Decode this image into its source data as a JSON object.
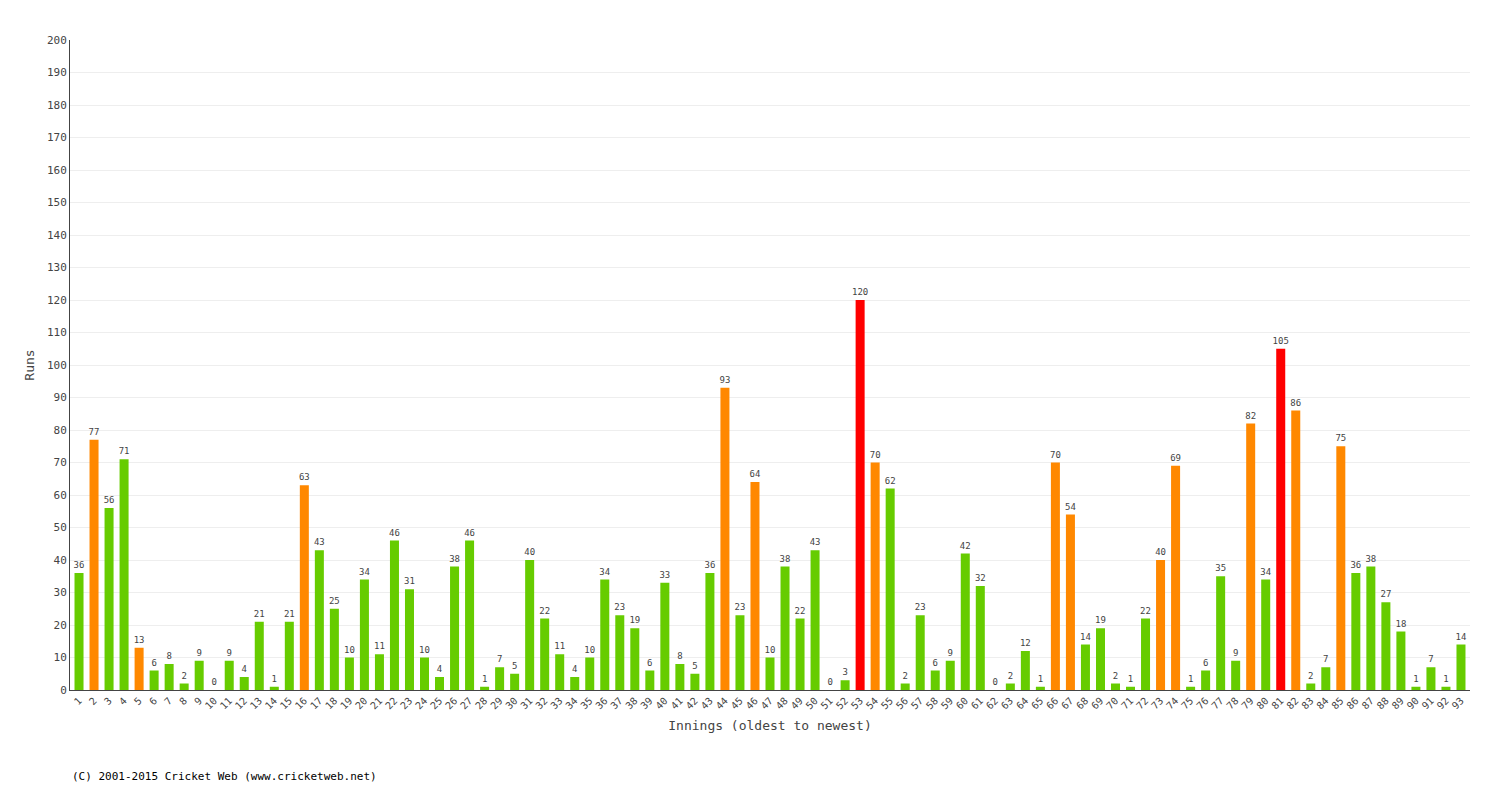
{
  "chart_data": {
    "type": "bar",
    "xlabel": "Innings (oldest to newest)",
    "ylabel": "Runs",
    "categories": [
      "1",
      "2",
      "3",
      "4",
      "5",
      "6",
      "7",
      "8",
      "9",
      "10",
      "11",
      "12",
      "13",
      "14",
      "15",
      "16",
      "17",
      "18",
      "19",
      "20",
      "21",
      "22",
      "23",
      "24",
      "25",
      "26",
      "27",
      "28",
      "29",
      "30",
      "31",
      "32",
      "33",
      "34",
      "35",
      "36",
      "37",
      "38",
      "39",
      "40",
      "41",
      "42",
      "43",
      "44",
      "45",
      "46",
      "47",
      "48",
      "49",
      "50",
      "51",
      "52",
      "53",
      "54",
      "55",
      "56",
      "57",
      "58",
      "59",
      "60",
      "61",
      "62",
      "63",
      "64",
      "65",
      "66",
      "67",
      "68",
      "69",
      "70",
      "71",
      "72",
      "73",
      "74",
      "75",
      "76",
      "77",
      "78",
      "79",
      "80",
      "81",
      "82",
      "83",
      "84",
      "85",
      "86",
      "87",
      "88",
      "89",
      "90",
      "91",
      "92",
      "93"
    ],
    "values": [
      36,
      77,
      56,
      71,
      13,
      6,
      8,
      2,
      9,
      0,
      9,
      4,
      21,
      1,
      21,
      63,
      43,
      25,
      10,
      34,
      11,
      46,
      31,
      10,
      4,
      38,
      46,
      1,
      7,
      5,
      40,
      22,
      11,
      4,
      10,
      34,
      23,
      19,
      6,
      33,
      8,
      5,
      36,
      93,
      23,
      64,
      10,
      38,
      22,
      43,
      0,
      3,
      120,
      70,
      62,
      2,
      23,
      6,
      9,
      42,
      32,
      0,
      2,
      12,
      1,
      70,
      54,
      14,
      19,
      2,
      1,
      22,
      40,
      69,
      1,
      6,
      35,
      9,
      82,
      34,
      105,
      86,
      2,
      7,
      75,
      36,
      38,
      27,
      18,
      1,
      7,
      1,
      14
    ],
    "colors": [
      "#66cc00",
      "#ff8800",
      "#66cc00",
      "#66cc00",
      "#ff8800",
      "#66cc00",
      "#66cc00",
      "#66cc00",
      "#66cc00",
      "#66cc00",
      "#66cc00",
      "#66cc00",
      "#66cc00",
      "#66cc00",
      "#66cc00",
      "#ff8800",
      "#66cc00",
      "#66cc00",
      "#66cc00",
      "#66cc00",
      "#66cc00",
      "#66cc00",
      "#66cc00",
      "#66cc00",
      "#66cc00",
      "#66cc00",
      "#66cc00",
      "#66cc00",
      "#66cc00",
      "#66cc00",
      "#66cc00",
      "#66cc00",
      "#66cc00",
      "#66cc00",
      "#66cc00",
      "#66cc00",
      "#66cc00",
      "#66cc00",
      "#66cc00",
      "#66cc00",
      "#66cc00",
      "#66cc00",
      "#66cc00",
      "#ff8800",
      "#66cc00",
      "#ff8800",
      "#66cc00",
      "#66cc00",
      "#66cc00",
      "#66cc00",
      "#66cc00",
      "#66cc00",
      "#ff0000",
      "#ff8800",
      "#66cc00",
      "#66cc00",
      "#66cc00",
      "#66cc00",
      "#66cc00",
      "#66cc00",
      "#66cc00",
      "#66cc00",
      "#66cc00",
      "#66cc00",
      "#66cc00",
      "#ff8800",
      "#ff8800",
      "#66cc00",
      "#66cc00",
      "#66cc00",
      "#66cc00",
      "#66cc00",
      "#ff8800",
      "#ff8800",
      "#66cc00",
      "#66cc00",
      "#66cc00",
      "#66cc00",
      "#ff8800",
      "#66cc00",
      "#ff0000",
      "#ff8800",
      "#66cc00",
      "#66cc00",
      "#ff8800",
      "#66cc00",
      "#66cc00",
      "#66cc00",
      "#66cc00",
      "#66cc00",
      "#66cc00",
      "#66cc00",
      "#66cc00"
    ],
    "ylim": [
      0,
      200
    ],
    "yticks": [
      0,
      10,
      20,
      30,
      40,
      50,
      60,
      70,
      80,
      90,
      100,
      110,
      120,
      130,
      140,
      150,
      160,
      170,
      180,
      190,
      200
    ],
    "grid": true,
    "data_labels": true,
    "annotations": [
      "(C) 2001-2015 Cricket Web (www.cricketweb.net)"
    ]
  }
}
